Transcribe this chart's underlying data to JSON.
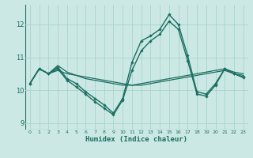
{
  "xlabel": "Humidex (Indice chaleur)",
  "ylabel": "",
  "background_color": "#cce8e4",
  "grid_color": "#a8d4cf",
  "line_color": "#1a6e60",
  "xlim": [
    -0.5,
    23.5
  ],
  "ylim": [
    8.8,
    12.6
  ],
  "yticks": [
    9,
    10,
    11,
    12
  ],
  "xticks": [
    0,
    1,
    2,
    3,
    4,
    5,
    6,
    7,
    8,
    9,
    10,
    11,
    12,
    13,
    14,
    15,
    16,
    17,
    18,
    19,
    20,
    21,
    22,
    23
  ],
  "series": [
    {
      "x": [
        0,
        1,
        2,
        3,
        4,
        5,
        6,
        7,
        8,
        9,
        10,
        11,
        12,
        13,
        14,
        15,
        16,
        17,
        18,
        19,
        20,
        21,
        22,
        23
      ],
      "y": [
        10.2,
        10.65,
        10.5,
        10.75,
        10.55,
        10.45,
        10.35,
        10.3,
        10.25,
        10.2,
        10.15,
        10.15,
        10.2,
        10.25,
        10.3,
        10.35,
        10.4,
        10.45,
        10.5,
        10.55,
        10.6,
        10.65,
        10.55,
        10.5
      ],
      "marker": false,
      "linewidth": 0.9
    },
    {
      "x": [
        0,
        1,
        2,
        3,
        4,
        5,
        6,
        7,
        8,
        9,
        10,
        11,
        12,
        13,
        14,
        15,
        16,
        17,
        18,
        19,
        20,
        21,
        22,
        23
      ],
      "y": [
        10.2,
        10.65,
        10.5,
        10.6,
        10.5,
        10.45,
        10.4,
        10.35,
        10.3,
        10.25,
        10.2,
        10.15,
        10.15,
        10.2,
        10.25,
        10.3,
        10.35,
        10.4,
        10.45,
        10.5,
        10.55,
        10.6,
        10.5,
        10.45
      ],
      "marker": false,
      "linewidth": 0.9
    },
    {
      "x": [
        0,
        1,
        2,
        3,
        4,
        5,
        6,
        7,
        8,
        9,
        10,
        11,
        12,
        13,
        14,
        15,
        16,
        17,
        18,
        19,
        20,
        21,
        22,
        23
      ],
      "y": [
        10.2,
        10.65,
        10.5,
        10.7,
        10.35,
        10.2,
        9.95,
        9.75,
        9.55,
        9.3,
        9.75,
        10.85,
        11.5,
        11.65,
        11.85,
        12.3,
        12.0,
        11.05,
        9.95,
        9.88,
        10.2,
        10.65,
        10.5,
        10.4
      ],
      "marker": true,
      "linewidth": 1.0
    },
    {
      "x": [
        0,
        1,
        2,
        3,
        4,
        5,
        6,
        7,
        8,
        9,
        10,
        11,
        12,
        13,
        14,
        15,
        16,
        17,
        18,
        19,
        20,
        21,
        22,
        23
      ],
      "y": [
        10.2,
        10.65,
        10.5,
        10.65,
        10.3,
        10.1,
        9.88,
        9.65,
        9.45,
        9.25,
        9.7,
        10.6,
        11.2,
        11.5,
        11.7,
        12.1,
        11.85,
        10.9,
        9.88,
        9.82,
        10.15,
        10.65,
        10.5,
        10.38
      ],
      "marker": true,
      "linewidth": 1.0
    }
  ]
}
